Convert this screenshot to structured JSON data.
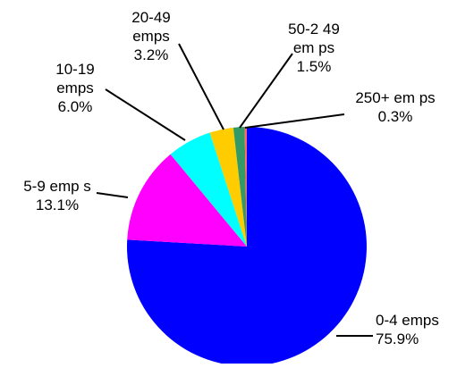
{
  "chart_data": {
    "type": "pie",
    "title": "",
    "start_angle_deg": 90,
    "direction": "clockwise",
    "slices": [
      {
        "label": [
          "0-4 emps"
        ],
        "value": 75.9,
        "value_label": "75.9%",
        "color": "#0000FF"
      },
      {
        "label": [
          "5-9 emp s"
        ],
        "value": 13.1,
        "value_label": "13.1%",
        "color": "#FF00FF"
      },
      {
        "label": [
          "10-19",
          "emps"
        ],
        "value": 6.0,
        "value_label": "6.0%",
        "color": "#00FFFF"
      },
      {
        "label": [
          "20-49",
          "emps"
        ],
        "value": 3.2,
        "value_label": "3.2%",
        "color": "#FFCC00"
      },
      {
        "label": [
          "50-2 49",
          "em ps"
        ],
        "value": 1.5,
        "value_label": "1.5%",
        "color": "#339966"
      },
      {
        "label": [
          "250+ em ps"
        ],
        "value": 0.3,
        "value_label": "0.3%",
        "color": "#FF6666"
      }
    ],
    "legend": "none",
    "grid": false
  }
}
